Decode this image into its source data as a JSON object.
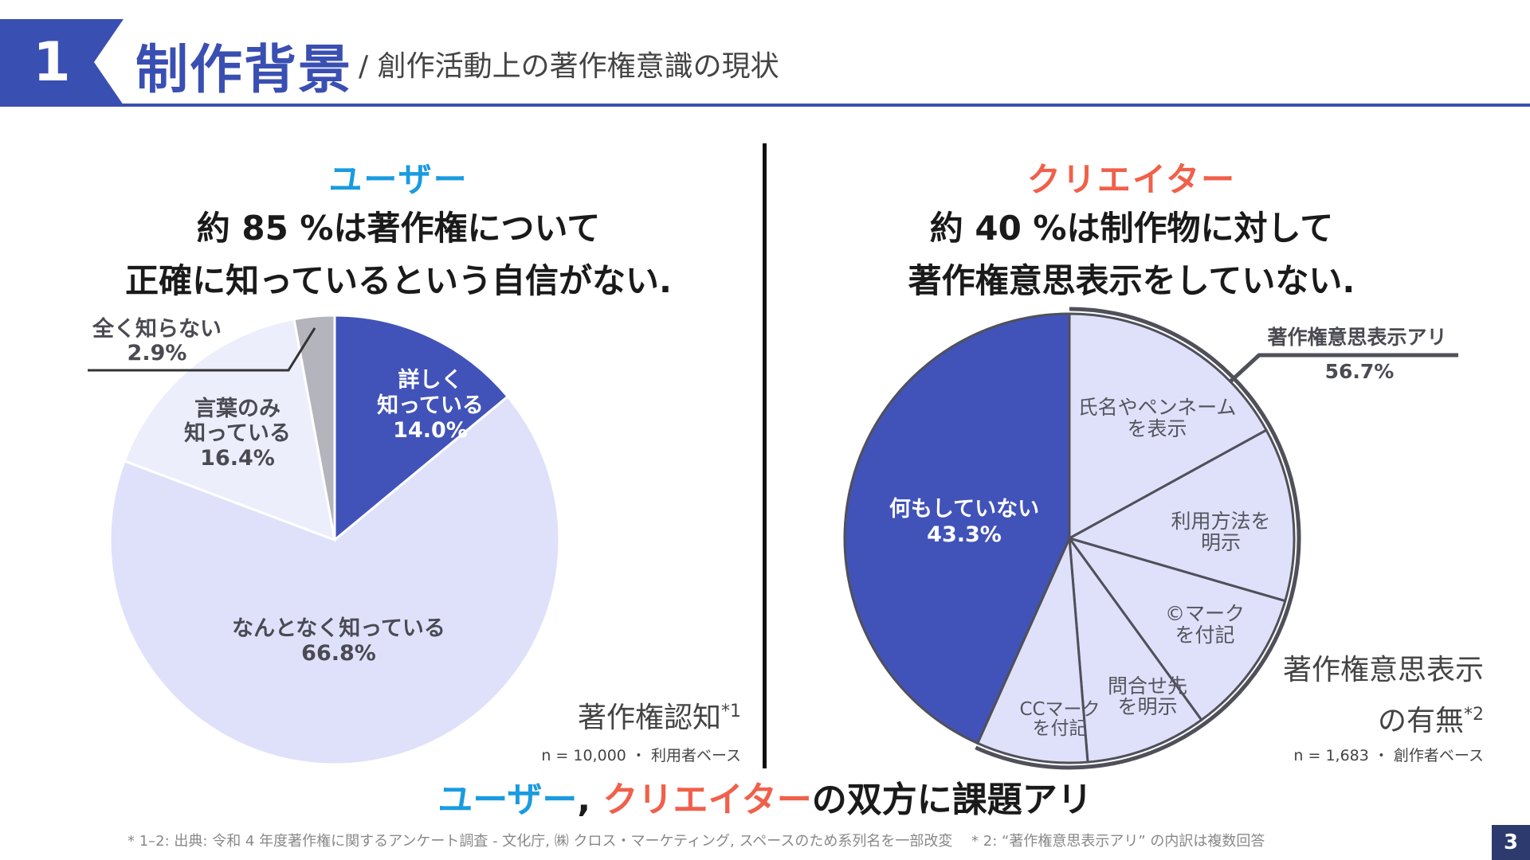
{
  "header": {
    "number": "1",
    "title": "制作背景",
    "subtitle": "/ 創作活動上の著作権意識の現状",
    "accent": "#3a4fb2"
  },
  "user_section": {
    "heading": "ユーザー",
    "heading_color": "#1a9be0",
    "claim_line1": "約 85 %は著作権について",
    "claim_line2": "正確に知っているという自信がない.",
    "caption_main": "著作権認知",
    "caption_sup": "*1",
    "sample_note": "n = 10,000 ・ 利用者ベース"
  },
  "creator_section": {
    "heading": "クリエイター",
    "heading_color": "#f0604a",
    "claim_line1": "約 40 %は制作物に対して",
    "claim_line2": "著作権意思表示をしていない.",
    "caption_line1": "著作権意思表示",
    "caption_line2": "の有無",
    "caption_sup": "*2",
    "sample_note": "n = 1,683 ・ 創作者ベース",
    "group_label": "著作権意思表示アリ",
    "group_value": "56.7%"
  },
  "chart_data": [
    {
      "type": "pie",
      "title": "著作権認知",
      "slices": [
        {
          "label": "詳しく知っている",
          "value": 14.0,
          "display": "14.0%",
          "color": "#4153b8"
        },
        {
          "label": "なんとなく知っている",
          "value": 66.8,
          "display": "66.8%",
          "color": "#dfe1fb"
        },
        {
          "label": "言葉のみ知っている",
          "value": 16.4,
          "display": "16.4%",
          "color": "#eceefc"
        },
        {
          "label": "全く知らない",
          "value": 2.9,
          "display": "2.9%",
          "color": "#b3b4bc"
        }
      ]
    },
    {
      "type": "pie",
      "title": "著作権意思表示の有無",
      "slices": [
        {
          "label": "氏名やペンネームを表示",
          "value": 17.0,
          "color": "#dfe1fb"
        },
        {
          "label": "利用方法を明示",
          "value": 12.5,
          "color": "#dfe1fb"
        },
        {
          "label": "©マークを付記",
          "value": 10.5,
          "color": "#dfe1fb"
        },
        {
          "label": "問合せ先を明示",
          "value": 8.7,
          "color": "#dfe1fb"
        },
        {
          "label": "CCマークを付記",
          "value": 8.0,
          "color": "#dfe1fb"
        },
        {
          "label": "何もしていない",
          "value": 43.3,
          "display": "43.3%",
          "color": "#4153b8"
        }
      ]
    }
  ],
  "chart_labels": {
    "u_detail_1": "詳しく",
    "u_detail_2": "知っている",
    "u_detail_3": "14.0%",
    "u_vague_1": "なんとなく知っている",
    "u_vague_2": "66.8%",
    "u_word_1": "言葉のみ",
    "u_word_2": "知っている",
    "u_word_3": "16.4%",
    "u_none_1": "全く知らない",
    "u_none_2": "2.9%",
    "c_name_1": "氏名やペンネーム",
    "c_name_2": "を表示",
    "c_usage_1": "利用方法を",
    "c_usage_2": "明示",
    "c_copy_1": "©マーク",
    "c_copy_2": "を付記",
    "c_contact_1": "問合せ先",
    "c_contact_2": "を明示",
    "c_cc_1": "CCマーク",
    "c_cc_2": "を付記",
    "c_nothing_1": "何もしていない",
    "c_nothing_2": "43.3%"
  },
  "conclusion": {
    "part1": "ユーザー",
    "sep": ", ",
    "part2": "クリエイター",
    "part3": "の双方に課題アリ"
  },
  "footnote": "* 1–2: 出典: 令和 4 年度著作権に関するアンケート調査 - 文化庁, ㈱ クロス・マーケティング, スペースのため系列名を一部改変　 * 2: “著作権意思表示アリ” の内訳は複数回答",
  "page_number": "3"
}
